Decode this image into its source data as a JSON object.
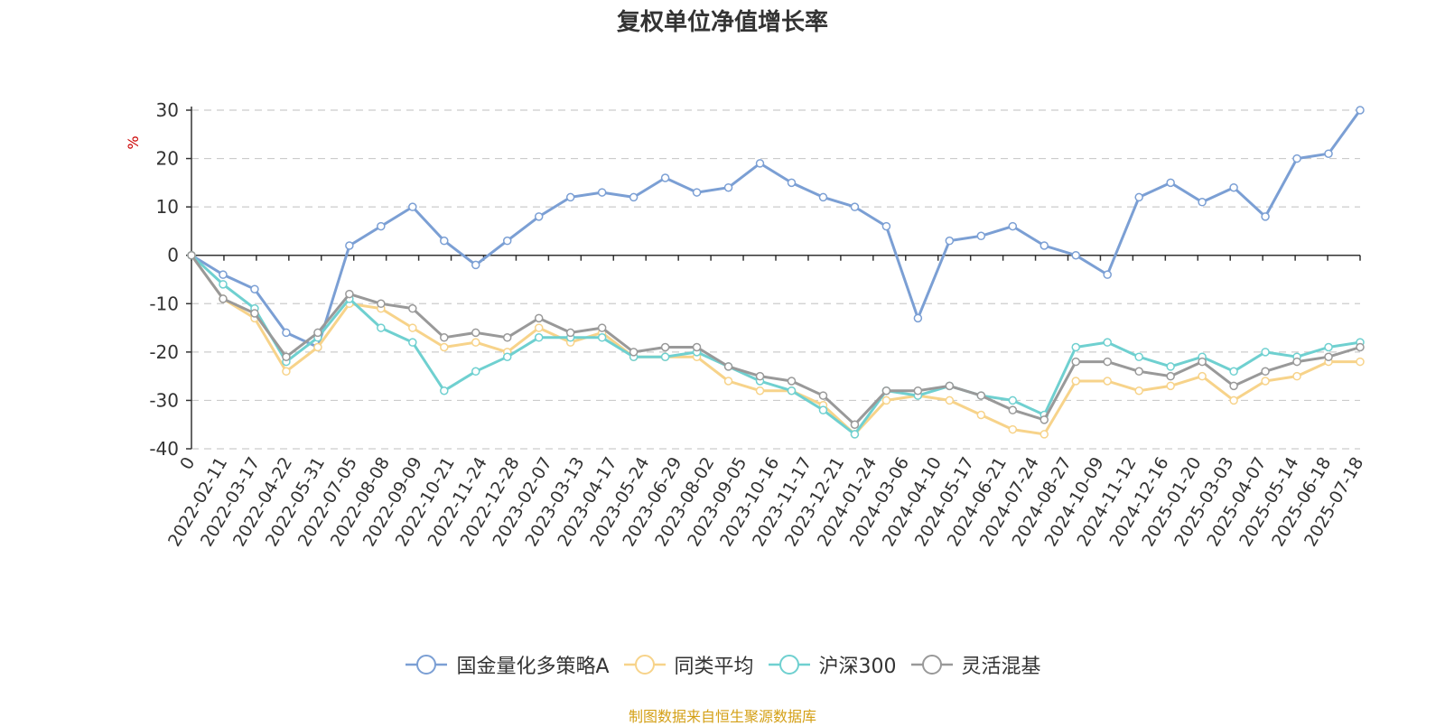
{
  "chart_data": {
    "type": "line",
    "title": "复权单位净值增长率",
    "ylabel": "%",
    "ylim": [
      -40,
      30
    ],
    "yticks": [
      30,
      20,
      10,
      0,
      -10,
      -20,
      -30,
      -40
    ],
    "xticks": [
      "0",
      "2022-02-11",
      "2022-03-17",
      "2022-04-22",
      "2022-05-31",
      "2022-07-05",
      "2022-08-08",
      "2022-09-09",
      "2022-10-21",
      "2022-11-24",
      "2022-12-28",
      "2023-02-07",
      "2023-03-13",
      "2023-04-17",
      "2023-05-24",
      "2023-06-29",
      "2023-08-02",
      "2023-09-05",
      "2023-10-16",
      "2023-11-17",
      "2023-12-21",
      "2024-01-24",
      "2024-03-06",
      "2024-04-10",
      "2024-05-17",
      "2024-06-21",
      "2024-07-24",
      "2024-08-27",
      "2024-10-09",
      "2024-11-12",
      "2024-12-16",
      "2025-01-20",
      "2025-03-03",
      "2025-04-07",
      "2025-05-14",
      "2025-06-18",
      "2025-07-18"
    ],
    "grid": true,
    "legend_position": "bottom",
    "series": [
      {
        "name": "国金量化多策略A",
        "color": "#7b9fd4",
        "values": [
          0,
          -4,
          -7,
          -16,
          -19,
          2,
          6,
          10,
          3,
          -2,
          3,
          8,
          12,
          13,
          12,
          16,
          13,
          14,
          19,
          15,
          12,
          10,
          6,
          -13,
          3,
          4,
          6,
          2,
          0,
          -4,
          12,
          15,
          11,
          14,
          8,
          20,
          21,
          30
        ]
      },
      {
        "name": "同类平均",
        "color": "#f7d38a",
        "values": [
          0,
          -9,
          -13,
          -24,
          -19,
          -10,
          -11,
          -15,
          -19,
          -18,
          -20,
          -15,
          -18,
          -16,
          -21,
          -21,
          -21,
          -26,
          -28,
          -28,
          -31,
          -37,
          -30,
          -29,
          -30,
          -33,
          -36,
          -37,
          -26,
          -26,
          -28,
          -27,
          -25,
          -30,
          -26,
          -25,
          -22,
          -22
        ]
      },
      {
        "name": "沪深300",
        "color": "#6fd0d0",
        "values": [
          0,
          -6,
          -11,
          -22,
          -17,
          -9,
          -15,
          -18,
          -28,
          -24,
          -21,
          -17,
          -17,
          -17,
          -21,
          -21,
          -20,
          -23,
          -26,
          -28,
          -32,
          -37,
          -28,
          -29,
          -27,
          -29,
          -30,
          -33,
          -19,
          -18,
          -21,
          -23,
          -21,
          -24,
          -20,
          -21,
          -19,
          -18
        ]
      },
      {
        "name": "灵活混基",
        "color": "#999999",
        "values": [
          0,
          -9,
          -12,
          -21,
          -16,
          -8,
          -10,
          -11,
          -17,
          -16,
          -17,
          -13,
          -16,
          -15,
          -20,
          -19,
          -19,
          -23,
          -25,
          -26,
          -29,
          -35,
          -28,
          -28,
          -27,
          -29,
          -32,
          -34,
          -22,
          -22,
          -24,
          -25,
          -22,
          -27,
          -24,
          -22,
          -21,
          -19
        ]
      }
    ]
  },
  "source_note": "制图数据来自恒生聚源数据库"
}
